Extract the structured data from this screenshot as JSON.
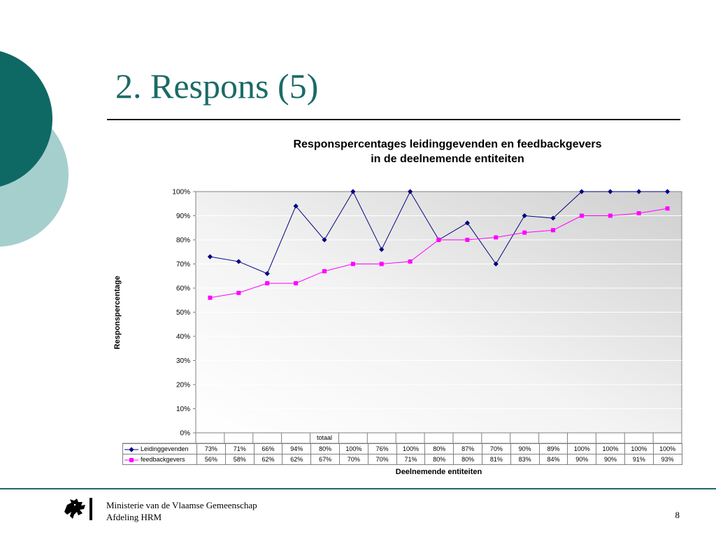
{
  "slide": {
    "title": "2. Respons (5)",
    "page_number": "8",
    "footer": {
      "line1": "Ministerie van de Vlaamse Gemeenschap",
      "line2": "Afdeling HRM"
    }
  },
  "colors": {
    "title": "#1a6b66",
    "circle_dark": "#0e6964",
    "circle_light": "#a5cfcd",
    "series_leidinggevenden": "#000080",
    "series_feedbackgevers": "#ff00ff"
  },
  "chart_data": {
    "type": "line",
    "title_line1": "Responspercentages leidinggevenden en feedbackgevers",
    "title_line2": "in de deelnemende entiteiten",
    "xlabel": "Deelnemende entiteiten",
    "ylabel": "Responspercentage",
    "categories": [
      "",
      "",
      "",
      "",
      "totaal",
      "",
      "",
      "",
      "",
      "",
      "",
      "",
      "",
      "",
      "",
      "",
      ""
    ],
    "ylim": [
      0,
      100
    ],
    "yticks": [
      "0%",
      "10%",
      "20%",
      "30%",
      "40%",
      "50%",
      "60%",
      "70%",
      "80%",
      "90%",
      "100%"
    ],
    "grid": true,
    "legend": "data table below chart",
    "series": [
      {
        "name": "Leidinggevenden",
        "marker": "diamond",
        "values": [
          73,
          71,
          66,
          94,
          80,
          100,
          76,
          100,
          80,
          87,
          70,
          90,
          89,
          100,
          100,
          100,
          100
        ],
        "labels": [
          "73%",
          "71%",
          "66%",
          "94%",
          "80%",
          "100%",
          "76%",
          "100%",
          "80%",
          "87%",
          "70%",
          "90%",
          "89%",
          "100%",
          "100%",
          "100%",
          "100%"
        ]
      },
      {
        "name": "feedbackgevers",
        "marker": "square",
        "values": [
          56,
          58,
          62,
          62,
          67,
          70,
          70,
          71,
          80,
          80,
          81,
          83,
          84,
          90,
          90,
          91,
          93
        ],
        "labels": [
          "56%",
          "58%",
          "62%",
          "62%",
          "67%",
          "70%",
          "70%",
          "71%",
          "80%",
          "80%",
          "81%",
          "83%",
          "84%",
          "90%",
          "90%",
          "91%",
          "93%"
        ]
      }
    ]
  }
}
